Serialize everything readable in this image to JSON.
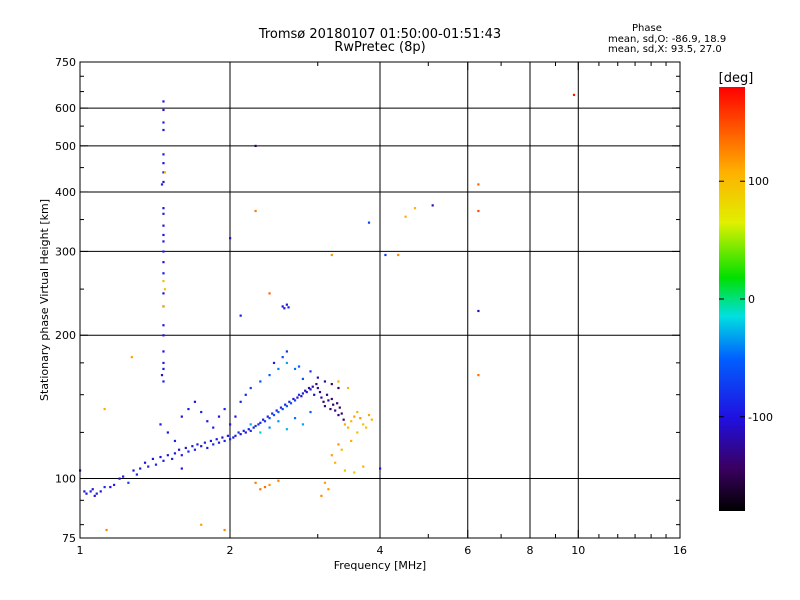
{
  "title": {
    "line1": "Tromsø 20180107 01:50:00-01:51:43",
    "line2": "RwPretec (8p)"
  },
  "phase_info": {
    "heading": "Phase",
    "line1": "mean, sd,O: -86.9, 18.9",
    "line2": "mean, sd,X:  93.5, 27.0"
  },
  "colorbar": {
    "unit": "[deg]",
    "range": [
      -180,
      180
    ],
    "ticks": [
      {
        "value": 100,
        "label": "100"
      },
      {
        "value": 0,
        "label": "0"
      },
      {
        "value": -100,
        "label": "-100"
      }
    ]
  },
  "chart_data": {
    "type": "scatter",
    "xlabel": "Frequency [MHz]",
    "ylabel": "Stationary phase Virtual Height [km]",
    "xscale": "log",
    "yscale": "log",
    "xlim": [
      1,
      16
    ],
    "ylim": [
      75,
      750
    ],
    "xticks": [
      {
        "value": 1,
        "label": "1"
      },
      {
        "value": 2,
        "label": "2"
      },
      {
        "value": 4,
        "label": "4"
      },
      {
        "value": 6,
        "label": "6"
      },
      {
        "value": 8,
        "label": "8"
      },
      {
        "value": 10,
        "label": "10"
      },
      {
        "value": 16,
        "label": "16"
      }
    ],
    "xminor": [
      3,
      5,
      7,
      9,
      11,
      12,
      13,
      14,
      15
    ],
    "xgrid": [
      2,
      4,
      6,
      8,
      10
    ],
    "yticks": [
      {
        "value": 75,
        "label": "75"
      },
      {
        "value": 100,
        "label": "100"
      },
      {
        "value": 200,
        "label": "200"
      },
      {
        "value": 300,
        "label": "300"
      },
      {
        "value": 400,
        "label": "400"
      },
      {
        "value": 500,
        "label": "500"
      },
      {
        "value": 600,
        "label": "600"
      },
      {
        "value": 750,
        "label": "750"
      }
    ],
    "yminor": [
      80,
      90,
      125,
      150,
      175,
      250,
      350,
      450,
      550,
      650,
      700
    ],
    "ygrid": [
      100,
      200,
      300,
      400,
      500,
      600
    ],
    "series": [
      {
        "role": "O-mode",
        "points": [
          [
            1.02,
            94,
            -95
          ],
          [
            1.03,
            93,
            -98
          ],
          [
            1.05,
            94,
            -90
          ],
          [
            1.06,
            95,
            -100
          ],
          [
            1.08,
            93,
            -92
          ],
          [
            1.1,
            94,
            -96
          ],
          [
            1.12,
            96,
            -85
          ],
          [
            1.15,
            96,
            -100
          ],
          [
            1.17,
            97,
            -90
          ],
          [
            1.2,
            100,
            -110
          ],
          [
            1.22,
            101,
            -95
          ],
          [
            1.25,
            98,
            -70
          ],
          [
            1.28,
            104,
            -100
          ],
          [
            1.3,
            102,
            -88
          ],
          [
            1.32,
            105,
            -95
          ],
          [
            1.35,
            108,
            -102
          ],
          [
            1.37,
            106,
            -90
          ],
          [
            1.4,
            110,
            -98
          ],
          [
            1.42,
            107,
            -86
          ],
          [
            1.45,
            111,
            -105
          ],
          [
            1.47,
            109,
            -92
          ],
          [
            1.5,
            112,
            -100
          ],
          [
            1.53,
            110,
            -88
          ],
          [
            1.55,
            113,
            -96
          ],
          [
            1.58,
            115,
            -104
          ],
          [
            1.6,
            112,
            -92
          ],
          [
            1.63,
            116,
            -98
          ],
          [
            1.65,
            114,
            -86
          ],
          [
            1.68,
            117,
            -100
          ],
          [
            1.7,
            115,
            -90
          ],
          [
            1.72,
            118,
            -95
          ],
          [
            1.75,
            117,
            -102
          ],
          [
            1.78,
            119,
            -88
          ],
          [
            1.8,
            116,
            -96
          ],
          [
            1.83,
            120,
            -100
          ],
          [
            1.85,
            118,
            -85
          ],
          [
            1.88,
            121,
            -98
          ],
          [
            1.9,
            119,
            -92
          ],
          [
            1.93,
            122,
            -104
          ],
          [
            1.95,
            120,
            -90
          ],
          [
            1.98,
            123,
            -96
          ],
          [
            2.0,
            121,
            -88
          ],
          [
            2.03,
            122,
            -100
          ],
          [
            2.05,
            123,
            -92
          ],
          [
            2.08,
            125,
            -86
          ],
          [
            2.1,
            124,
            -98
          ],
          [
            2.13,
            126,
            -90
          ],
          [
            2.15,
            125,
            -102
          ],
          [
            2.18,
            127,
            -94
          ],
          [
            2.2,
            126,
            -88
          ],
          [
            2.23,
            128,
            -96
          ],
          [
            2.25,
            129,
            -80
          ],
          [
            2.28,
            130,
            -92
          ],
          [
            2.3,
            131,
            -85
          ],
          [
            2.33,
            133,
            -98
          ],
          [
            2.35,
            132,
            -75
          ],
          [
            2.38,
            135,
            -90
          ],
          [
            2.4,
            134,
            -70
          ],
          [
            2.43,
            137,
            -88
          ],
          [
            2.45,
            136,
            -60
          ],
          [
            2.48,
            139,
            -92
          ],
          [
            2.5,
            138,
            -55
          ],
          [
            2.53,
            141,
            -86
          ],
          [
            2.55,
            140,
            -65
          ],
          [
            2.58,
            143,
            -95
          ],
          [
            2.6,
            142,
            -50
          ],
          [
            2.63,
            145,
            -90
          ],
          [
            2.65,
            144,
            -60
          ],
          [
            2.68,
            147,
            -100
          ],
          [
            2.7,
            146,
            -70
          ],
          [
            2.73,
            148,
            -105
          ],
          [
            2.75,
            150,
            -80
          ],
          [
            2.78,
            149,
            -110
          ],
          [
            2.8,
            151,
            -90
          ],
          [
            2.83,
            153,
            -115
          ],
          [
            2.85,
            152,
            -100
          ],
          [
            2.88,
            155,
            -120
          ],
          [
            2.9,
            154,
            -105
          ],
          [
            2.93,
            156,
            -125
          ],
          [
            2.95,
            150,
            -115
          ],
          [
            2.98,
            158,
            -130
          ],
          [
            3.0,
            155,
            -120
          ],
          [
            3.03,
            152,
            -135
          ],
          [
            3.05,
            148,
            -125
          ],
          [
            3.08,
            145,
            -140
          ],
          [
            3.1,
            142,
            -130
          ],
          [
            3.13,
            150,
            -138
          ],
          [
            3.15,
            146,
            -128
          ],
          [
            3.18,
            140,
            -142
          ],
          [
            3.2,
            147,
            -135
          ],
          [
            3.22,
            143,
            -145
          ],
          [
            3.25,
            139,
            -130
          ],
          [
            3.28,
            144,
            -140
          ],
          [
            3.3,
            136,
            -135
          ],
          [
            3.32,
            141,
            -148
          ],
          [
            3.35,
            137,
            -138
          ],
          [
            3.38,
            133,
            -145
          ],
          [
            2.2,
            130,
            -30
          ],
          [
            2.3,
            125,
            -20
          ],
          [
            2.4,
            128,
            -40
          ],
          [
            2.5,
            132,
            -35
          ],
          [
            2.6,
            127,
            -25
          ],
          [
            2.7,
            134,
            -45
          ],
          [
            2.8,
            130,
            -30
          ],
          [
            2.9,
            138,
            -50
          ],
          [
            1.45,
            130,
            -95
          ],
          [
            1.5,
            125,
            -100
          ],
          [
            1.55,
            120,
            -90
          ],
          [
            1.6,
            135,
            -105
          ],
          [
            1.65,
            140,
            -95
          ],
          [
            1.7,
            145,
            -100
          ],
          [
            1.75,
            138,
            -88
          ],
          [
            1.8,
            132,
            -96
          ],
          [
            1.85,
            128,
            -92
          ],
          [
            1.9,
            135,
            -100
          ],
          [
            1.95,
            140,
            -86
          ],
          [
            2.0,
            130,
            -94
          ],
          [
            2.05,
            135,
            -100
          ],
          [
            2.1,
            145,
            -90
          ],
          [
            2.15,
            150,
            -85
          ],
          [
            2.2,
            155,
            -70
          ],
          [
            2.3,
            160,
            -60
          ],
          [
            2.4,
            165,
            -50
          ],
          [
            2.5,
            170,
            -40
          ],
          [
            2.6,
            175,
            -30
          ],
          [
            2.7,
            170,
            -45
          ],
          [
            2.8,
            162,
            -60
          ],
          [
            2.9,
            168,
            -75
          ],
          [
            3.0,
            163,
            -110
          ],
          [
            3.1,
            160,
            -125
          ],
          [
            3.2,
            158,
            -140
          ],
          [
            3.3,
            155,
            -150
          ],
          [
            2.6,
            185,
            -80
          ],
          [
            2.45,
            175,
            -95
          ],
          [
            2.55,
            180,
            -65
          ],
          [
            2.75,
            172,
            -55
          ],
          [
            1.47,
            620,
            -95
          ],
          [
            1.47,
            595,
            -100
          ],
          [
            1.47,
            560,
            -90
          ],
          [
            1.47,
            540,
            -98
          ],
          [
            1.47,
            480,
            -92
          ],
          [
            1.47,
            460,
            -100
          ],
          [
            1.47,
            440,
            -95
          ],
          [
            1.47,
            420,
            -105
          ],
          [
            1.46,
            415,
            -88
          ],
          [
            1.47,
            370,
            -100
          ],
          [
            1.47,
            360,
            -92
          ],
          [
            1.47,
            340,
            -98
          ],
          [
            1.47,
            325,
            -100
          ],
          [
            1.47,
            315,
            -95
          ],
          [
            1.47,
            300,
            -90
          ],
          [
            1.47,
            285,
            -100
          ],
          [
            1.47,
            270,
            -96
          ],
          [
            1.47,
            245,
            -100
          ],
          [
            1.47,
            230,
            -92
          ],
          [
            1.47,
            210,
            -95
          ],
          [
            1.47,
            200,
            -98
          ],
          [
            1.47,
            185,
            -100
          ],
          [
            1.47,
            175,
            -92
          ],
          [
            1.47,
            170,
            -95
          ],
          [
            1.46,
            165,
            -100
          ],
          [
            1.47,
            160,
            -90
          ],
          [
            2.55,
            230,
            -100
          ],
          [
            2.57,
            228,
            -95
          ],
          [
            2.6,
            232,
            -98
          ],
          [
            2.62,
            229,
            -92
          ],
          [
            2.1,
            220,
            -95
          ],
          [
            2.0,
            320,
            -110
          ],
          [
            2.25,
            500,
            -150
          ],
          [
            3.8,
            345,
            -70
          ],
          [
            4.1,
            295,
            -80
          ],
          [
            5.1,
            375,
            -110
          ],
          [
            6.3,
            225,
            -120
          ],
          [
            4.0,
            105,
            -95
          ],
          [
            1.6,
            105,
            -100
          ],
          [
            1.0,
            104,
            -90
          ],
          [
            1.07,
            92,
            -100
          ]
        ]
      },
      {
        "role": "X-mode",
        "points": [
          [
            3.4,
            130,
            110
          ],
          [
            3.45,
            128,
            105
          ],
          [
            3.5,
            132,
            100
          ],
          [
            3.55,
            135,
            115
          ],
          [
            3.6,
            138,
            108
          ],
          [
            3.65,
            134,
            120
          ],
          [
            3.7,
            130,
            95
          ],
          [
            3.75,
            128,
            100
          ],
          [
            3.8,
            136,
            112
          ],
          [
            3.85,
            133,
            105
          ],
          [
            3.6,
            125,
            98
          ],
          [
            3.5,
            120,
            110
          ],
          [
            3.3,
            118,
            120
          ],
          [
            3.2,
            112,
            115
          ],
          [
            3.25,
            108,
            105
          ],
          [
            3.4,
            104,
            100
          ],
          [
            3.55,
            103,
            95
          ],
          [
            3.7,
            106,
            108
          ],
          [
            3.35,
            115,
            102
          ],
          [
            3.1,
            98,
            115
          ],
          [
            3.15,
            95,
            120
          ],
          [
            3.05,
            92,
            125
          ],
          [
            2.25,
            98,
            130
          ],
          [
            2.35,
            96,
            135
          ],
          [
            2.5,
            99,
            128
          ],
          [
            2.4,
            97,
            120
          ],
          [
            2.3,
            95,
            132
          ],
          [
            1.13,
            78,
            125
          ],
          [
            1.27,
            180,
            115
          ],
          [
            1.12,
            140,
            110
          ],
          [
            1.48,
            440,
            105
          ],
          [
            1.47,
            260,
            100
          ],
          [
            1.48,
            250,
            98
          ],
          [
            1.47,
            230,
            110
          ],
          [
            2.25,
            365,
            130
          ],
          [
            2.4,
            245,
            140
          ],
          [
            3.2,
            295,
            120
          ],
          [
            4.35,
            295,
            125
          ],
          [
            4.5,
            355,
            110
          ],
          [
            4.7,
            370,
            105
          ],
          [
            6.3,
            415,
            140
          ],
          [
            6.3,
            365,
            150
          ],
          [
            6.3,
            165,
            135
          ],
          [
            9.8,
            640,
            170
          ],
          [
            1.95,
            78,
            125
          ],
          [
            1.75,
            80,
            115
          ],
          [
            3.3,
            160,
            110
          ],
          [
            3.45,
            155,
            105
          ]
        ]
      }
    ]
  }
}
